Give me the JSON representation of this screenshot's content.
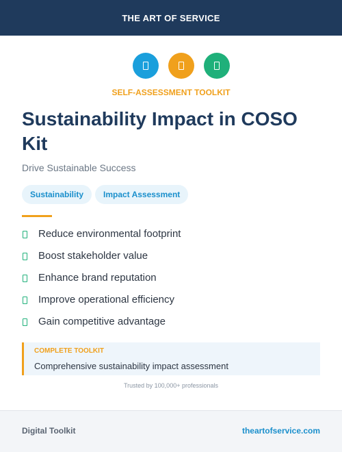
{
  "header": {
    "brand": "THE ART OF SERVICE"
  },
  "card": {
    "eyebrow": "SELF-ASSESSMENT TOOLKIT",
    "title": "Sustainability Impact in COSO Kit",
    "subtitle": "Drive Sustainable Success",
    "tags": [
      "Sustainability",
      "Impact Assessment"
    ],
    "benefits": [
      "Reduce environmental footprint",
      "Boost stakeholder value",
      "Enhance brand reputation",
      "Improve operational efficiency",
      "Gain competitive advantage"
    ],
    "callout": {
      "label": "COMPLETE TOOLKIT",
      "text": "Comprehensive sustainability impact assessment"
    },
    "trust": "Trusted by 100,000+ professionals"
  },
  "footer": {
    "left": "Digital Toolkit",
    "right": "theartofservice.com"
  }
}
